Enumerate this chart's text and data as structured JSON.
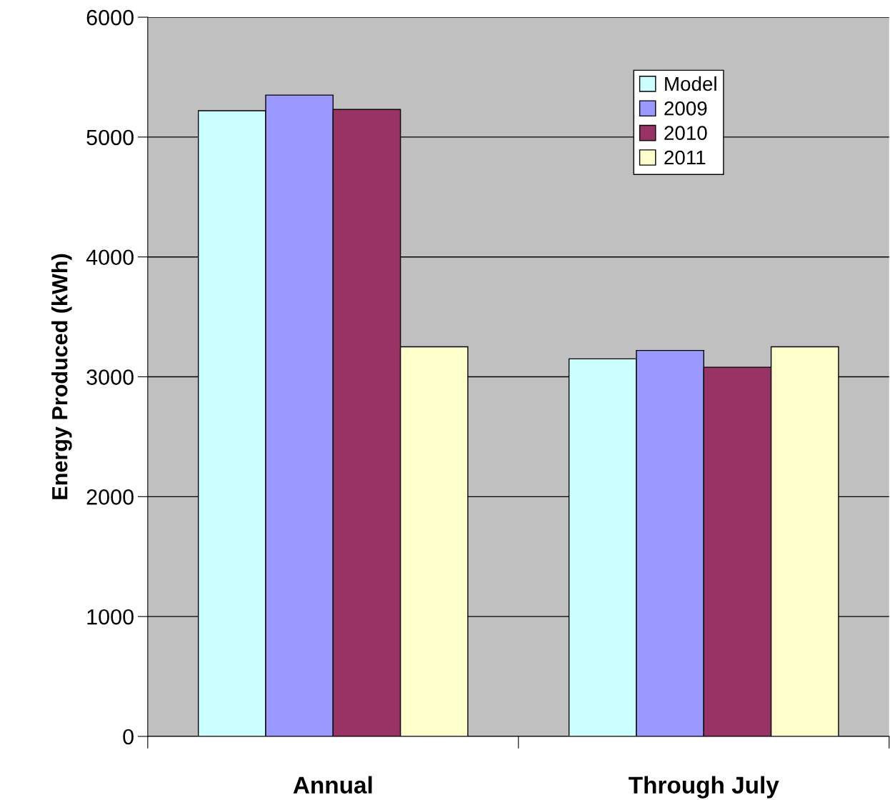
{
  "chart_data": {
    "type": "bar",
    "ylabel": "Energy Produced (kWh)",
    "categories": [
      "Annual",
      "Through July"
    ],
    "series": [
      {
        "name": "Model",
        "color": "#ccffff",
        "values": [
          5220,
          3150
        ]
      },
      {
        "name": "2009",
        "color": "#9999ff",
        "values": [
          5350,
          3220
        ]
      },
      {
        "name": "2010",
        "color": "#993366",
        "values": [
          5230,
          3080
        ]
      },
      {
        "name": "2011",
        "color": "#ffffcc",
        "values": [
          3250,
          3250
        ]
      }
    ],
    "ylim": [
      0,
      6000
    ],
    "yticks": [
      0,
      1000,
      2000,
      3000,
      4000,
      5000,
      6000
    ],
    "grid": "y",
    "legend": "top right"
  }
}
